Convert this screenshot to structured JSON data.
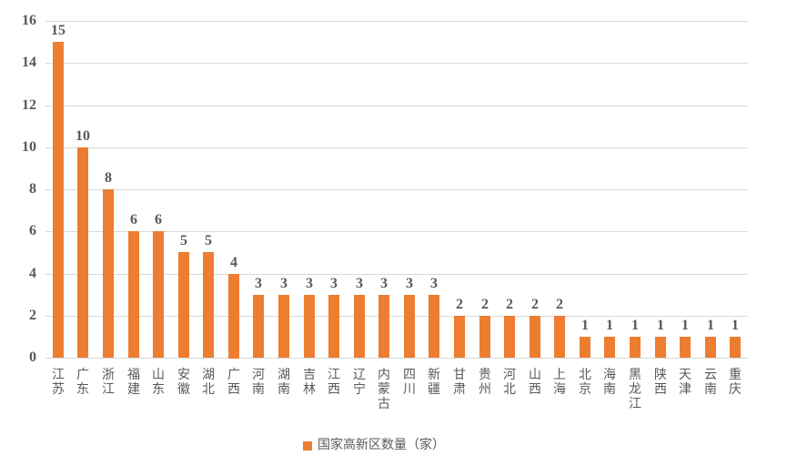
{
  "chart_data": {
    "type": "bar",
    "title": "",
    "categories": [
      "江苏",
      "广东",
      "浙江",
      "福建",
      "山东",
      "安徽",
      "湖北",
      "广西",
      "河南",
      "湖南",
      "吉林",
      "江西",
      "辽宁",
      "内蒙古",
      "四川",
      "新疆",
      "甘肃",
      "贵州",
      "河北",
      "山西",
      "上海",
      "北京",
      "海南",
      "黑龙江",
      "陕西",
      "天津",
      "云南",
      "重庆"
    ],
    "values": [
      15,
      10,
      8,
      6,
      6,
      5,
      5,
      4,
      3,
      3,
      3,
      3,
      3,
      3,
      3,
      3,
      2,
      2,
      2,
      2,
      2,
      1,
      1,
      1,
      1,
      1,
      1,
      1
    ],
    "series_name": "国家高新区数量（家）",
    "data_labels": [
      15,
      10,
      8,
      6,
      6,
      5,
      5,
      4,
      3,
      3,
      3,
      3,
      3,
      3,
      3,
      3,
      2,
      2,
      2,
      2,
      2,
      1,
      1,
      1,
      1,
      1,
      1,
      1
    ],
    "xlabel": "",
    "ylabel": "",
    "ylim": [
      0,
      16
    ],
    "y_ticks": [
      "0",
      "2",
      "4",
      "6",
      "8",
      "10",
      "12",
      "14",
      "16"
    ],
    "grid": "horizontal",
    "legend_position": "bottom-center",
    "colors": {
      "bar": "#ED7D31",
      "gridline": "#D9D9D9",
      "axis_line": "#D9D9D9",
      "text": "#595959",
      "background": "#FFFFFF"
    }
  }
}
